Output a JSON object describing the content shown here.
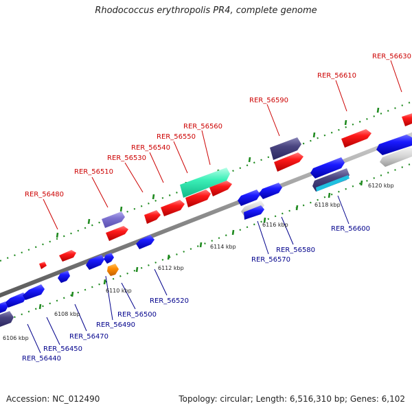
{
  "title": "Rhodococcus erythropolis PR4, complete genome",
  "footer": {
    "accession": "Accession: NC_012490",
    "summary": "Topology: circular; Length: 6,516,310 bp; Genes: 6,102"
  },
  "colors": {
    "forward_label": "#cc0000",
    "reverse_label": "#00008b",
    "backbone": "#8c8c8c",
    "tick": "#1f8a1f"
  },
  "scale_labels": [
    "6106 kbp",
    "6108 kbp",
    "6110 kbp",
    "6112 kbp",
    "6114 kbp",
    "6116 kbp",
    "6118 kbp",
    "6120 kbp"
  ],
  "forward_labels": [
    "RER_56480",
    "RER_56510",
    "RER_56530",
    "RER_56540",
    "RER_56550",
    "RER_56560",
    "RER_56590",
    "RER_56610",
    "RER_56630"
  ],
  "reverse_labels": [
    "RER_56440",
    "RER_56450",
    "RER_56470",
    "RER_56490",
    "RER_56500",
    "RER_56520",
    "RER_56570",
    "RER_56580",
    "RER_56600"
  ]
}
